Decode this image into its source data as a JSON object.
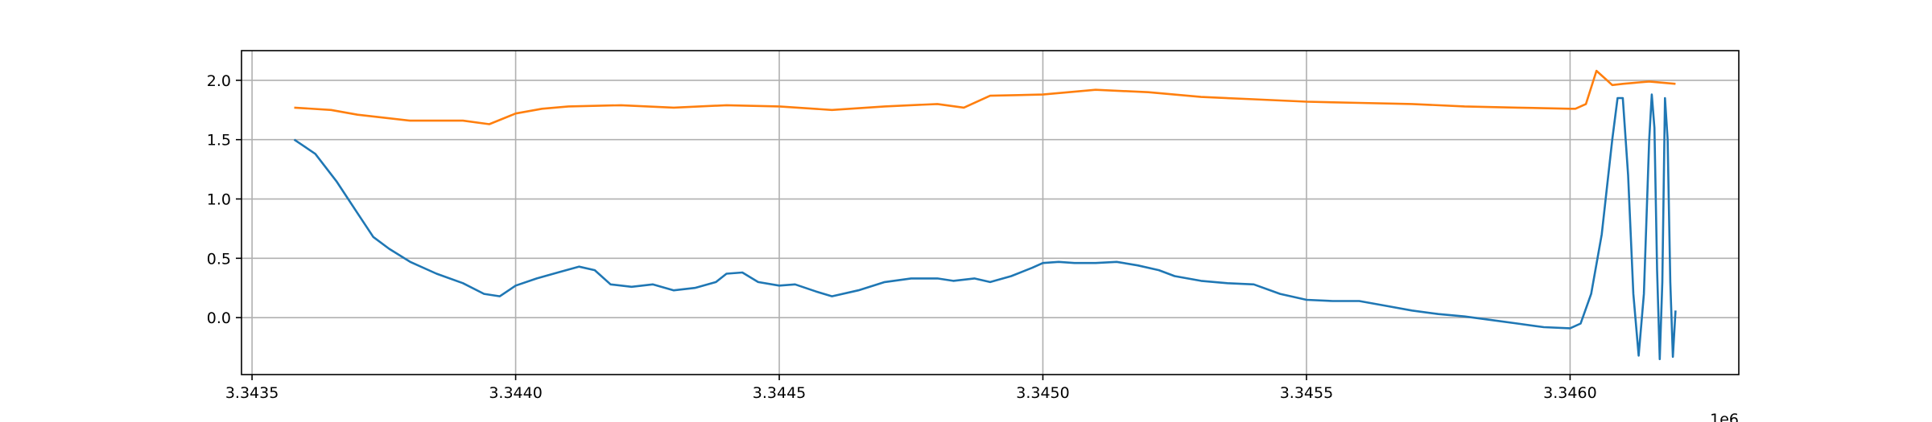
{
  "chart_data": {
    "type": "line",
    "title": "",
    "xlabel": "",
    "ylabel": "",
    "x_offset_label": "1e6",
    "xlim": [
      3.34348,
      3.34632
    ],
    "ylim": [
      -0.48,
      2.25
    ],
    "x_ticks": [
      3.3435,
      3.344,
      3.3445,
      3.345,
      3.3455,
      3.346
    ],
    "x_tick_labels": [
      "3.3435",
      "3.3440",
      "3.3445",
      "3.3450",
      "3.3455",
      "3.3460"
    ],
    "y_ticks": [
      0.0,
      0.5,
      1.0,
      1.5,
      2.0
    ],
    "y_tick_labels": [
      "0.0",
      "0.5",
      "1.0",
      "1.5",
      "2.0"
    ],
    "grid": true,
    "legend": "none",
    "series": [
      {
        "color": "#1f77b4",
        "x": [
          3.34358,
          3.34362,
          3.34366,
          3.3437,
          3.34373,
          3.34376,
          3.3438,
          3.34385,
          3.3439,
          3.34394,
          3.34397,
          3.344,
          3.34404,
          3.34408,
          3.34412,
          3.34415,
          3.34418,
          3.34422,
          3.34426,
          3.3443,
          3.34434,
          3.34438,
          3.3444,
          3.34443,
          3.34446,
          3.3445,
          3.34453,
          3.34457,
          3.3446,
          3.34465,
          3.3447,
          3.34475,
          3.3448,
          3.34483,
          3.34487,
          3.3449,
          3.34494,
          3.34498,
          3.345,
          3.34503,
          3.34506,
          3.3451,
          3.34514,
          3.34518,
          3.34522,
          3.34525,
          3.3453,
          3.34535,
          3.3454,
          3.34545,
          3.3455,
          3.34555,
          3.3456,
          3.34565,
          3.3457,
          3.34575,
          3.3458,
          3.34585,
          3.3459,
          3.34595,
          3.346,
          3.34602,
          3.34604,
          3.34606,
          3.34608,
          3.34609,
          3.3461,
          3.34611,
          3.34612,
          3.34613,
          3.34614,
          3.34615,
          3.346155,
          3.34616,
          3.346165,
          3.34617,
          3.346175,
          3.34618,
          3.346185,
          3.34619,
          3.346195,
          3.3462
        ],
        "y": [
          1.5,
          1.38,
          1.15,
          0.88,
          0.68,
          0.58,
          0.47,
          0.37,
          0.29,
          0.2,
          0.18,
          0.27,
          0.33,
          0.38,
          0.43,
          0.4,
          0.28,
          0.26,
          0.28,
          0.23,
          0.25,
          0.3,
          0.37,
          0.38,
          0.3,
          0.27,
          0.28,
          0.22,
          0.18,
          0.23,
          0.3,
          0.33,
          0.33,
          0.31,
          0.33,
          0.3,
          0.35,
          0.42,
          0.46,
          0.47,
          0.46,
          0.46,
          0.47,
          0.44,
          0.4,
          0.35,
          0.31,
          0.29,
          0.28,
          0.2,
          0.15,
          0.14,
          0.14,
          0.1,
          0.06,
          0.03,
          0.01,
          -0.02,
          -0.05,
          -0.08,
          -0.09,
          -0.05,
          0.2,
          0.7,
          1.5,
          1.85,
          1.85,
          1.2,
          0.2,
          -0.32,
          0.2,
          1.5,
          1.88,
          1.6,
          0.4,
          -0.35,
          0.3,
          1.85,
          1.5,
          0.3,
          -0.33,
          0.06
        ]
      },
      {
        "color": "#ff7f0e",
        "x": [
          3.34358,
          3.34365,
          3.3437,
          3.3438,
          3.3439,
          3.34395,
          3.344,
          3.34405,
          3.3441,
          3.3442,
          3.3443,
          3.3444,
          3.3445,
          3.3446,
          3.3447,
          3.3448,
          3.34485,
          3.3449,
          3.345,
          3.3451,
          3.3452,
          3.3453,
          3.3454,
          3.3455,
          3.3456,
          3.3457,
          3.3458,
          3.3459,
          3.346,
          3.34601,
          3.34603,
          3.34605,
          3.34607,
          3.34608,
          3.3461,
          3.34615,
          3.3462
        ],
        "y": [
          1.77,
          1.75,
          1.71,
          1.66,
          1.66,
          1.63,
          1.72,
          1.76,
          1.78,
          1.79,
          1.77,
          1.79,
          1.78,
          1.75,
          1.78,
          1.8,
          1.77,
          1.87,
          1.88,
          1.92,
          1.9,
          1.86,
          1.84,
          1.82,
          1.81,
          1.8,
          1.78,
          1.77,
          1.76,
          1.76,
          1.8,
          2.08,
          2.0,
          1.96,
          1.97,
          1.99,
          1.97
        ]
      }
    ]
  }
}
